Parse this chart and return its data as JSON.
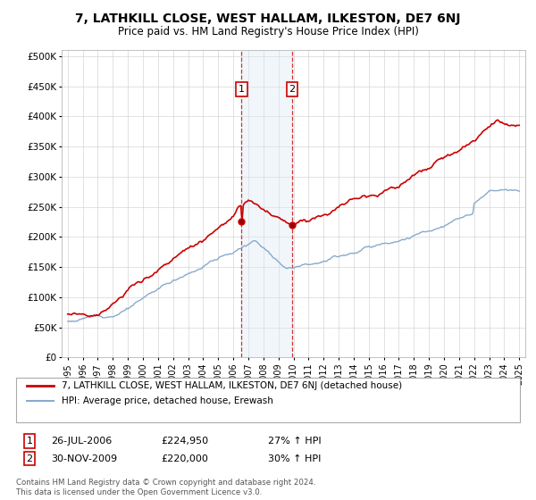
{
  "title": "7, LATHKILL CLOSE, WEST HALLAM, ILKESTON, DE7 6NJ",
  "subtitle": "Price paid vs. HM Land Registry's House Price Index (HPI)",
  "legend_line1": "7, LATHKILL CLOSE, WEST HALLAM, ILKESTON, DE7 6NJ (detached house)",
  "legend_line2": "HPI: Average price, detached house, Erewash",
  "annotation1_label": "1",
  "annotation1_date": "26-JUL-2006",
  "annotation1_price": "£224,950",
  "annotation1_hpi": "27% ↑ HPI",
  "annotation2_label": "2",
  "annotation2_date": "30-NOV-2009",
  "annotation2_price": "£220,000",
  "annotation2_hpi": "30% ↑ HPI",
  "footer": "Contains HM Land Registry data © Crown copyright and database right 2024.\nThis data is licensed under the Open Government Licence v3.0.",
  "red_color": "#cc0000",
  "blue_color": "#88aacc",
  "highlight_color": "#d8e8f4",
  "annotation_box_color": "#cc0000",
  "ytick_labels": [
    "£0",
    "£50K",
    "£100K",
    "£150K",
    "£200K",
    "£250K",
    "£300K",
    "£350K",
    "£400K",
    "£450K",
    "£500K"
  ],
  "ytick_values": [
    0,
    50000,
    100000,
    150000,
    200000,
    250000,
    300000,
    350000,
    400000,
    450000,
    500000
  ],
  "sale1_year": 2006.55,
  "sale2_year": 2009.92,
  "sale1_price": 224950,
  "sale2_price": 220000
}
